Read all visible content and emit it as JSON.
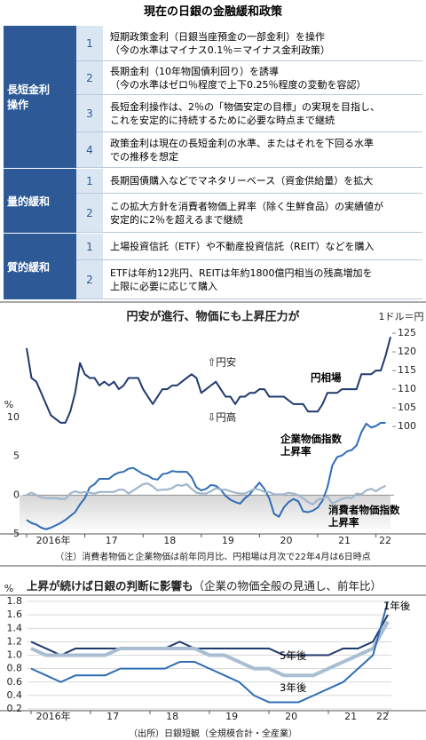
{
  "header": {
    "title": "現在の日銀の金融緩和政策"
  },
  "table": {
    "groups": [
      {
        "label_lines": [
          "長短金利",
          "操作"
        ],
        "rows": [
          {
            "no": "1",
            "lines": [
              "短期政策金利（日銀当座預金の一部金利）を操作",
              "（今の水準はマイナス0.1％＝マイナス金利政策）"
            ]
          },
          {
            "no": "2",
            "lines": [
              "長期金利（10年物国債利回り）を誘導",
              "（今の水準はゼロ％程度で上下0.25％程度の変動を容認）"
            ]
          },
          {
            "no": "3",
            "lines": [
              "長短金利操作は、2％の「物価安定の目標」の実現を目指し、",
              "これを安定的に持続するために必要な時点まで継続"
            ]
          },
          {
            "no": "4",
            "lines": [
              "政策金利は現在の長短金利の水準、またはそれを下回る水準",
              "での推移を想定"
            ]
          }
        ]
      },
      {
        "label_lines": [
          "量的緩和"
        ],
        "rows": [
          {
            "no": "1",
            "lines": [
              "長期国債購入などでマネタリーベース（資金供給量）を拡大"
            ]
          },
          {
            "no": "2",
            "lines": [
              "この拡大方針を消費者物価上昇率（除く生鮮食品）の実績値が",
              "安定的に2％を超えるまで継続"
            ]
          }
        ]
      },
      {
        "label_lines": [
          "質的緩和"
        ],
        "rows": [
          {
            "no": "1",
            "lines": [
              "上場投資信託（ETF）や不動産投資信託（REIT）などを購入"
            ]
          },
          {
            "no": "2",
            "lines": [
              "ETFは年約12兆円、REITは年約1800億円相当の残高増加を",
              "上限に必要に応じて購入"
            ]
          }
        ]
      }
    ]
  },
  "chart_data": [
    {
      "type": "line",
      "title": "円安が進行、物価にも上昇圧力が",
      "categories": [
        "2016年",
        null,
        null,
        null,
        null,
        null,
        null,
        null,
        null,
        null,
        null,
        null,
        "17",
        null,
        null,
        null,
        null,
        null,
        null,
        null,
        null,
        null,
        null,
        null,
        "18",
        null,
        null,
        null,
        null,
        null,
        null,
        null,
        null,
        null,
        null,
        null,
        "19",
        null,
        null,
        null,
        null,
        null,
        null,
        null,
        null,
        null,
        null,
        null,
        "20",
        null,
        null,
        null,
        null,
        null,
        null,
        null,
        null,
        null,
        null,
        null,
        "21",
        null,
        null,
        null,
        null,
        null,
        null,
        null,
        null,
        null,
        null,
        null,
        "22",
        null,
        null,
        null
      ],
      "series": [
        {
          "name": "円相場",
          "color": "#1f3a6e",
          "axis": "y2",
          "values": [
            121,
            113,
            112,
            109,
            106,
            103,
            102,
            101,
            101,
            104,
            109,
            117,
            114,
            113,
            113,
            111,
            112,
            111,
            112,
            110,
            111,
            113,
            113,
            113,
            110,
            108,
            106,
            108,
            110,
            110,
            111,
            111,
            112,
            113,
            114,
            113,
            109,
            110,
            111,
            112,
            110,
            108,
            108,
            106,
            108,
            108,
            109,
            109,
            110,
            110,
            108,
            108,
            108,
            108,
            107,
            106,
            106,
            106,
            104,
            104,
            104,
            106,
            109,
            109,
            109,
            110,
            110,
            110,
            110,
            114,
            114,
            114,
            115,
            115,
            119,
            124
          ]
        },
        {
          "name": "企業物価指数上昇率",
          "color": "#2f6db5",
          "values": [
            -3.2,
            -3.6,
            -3.8,
            -4.2,
            -4.4,
            -4.2,
            -3.9,
            -3.6,
            -3.2,
            -2.7,
            -2.2,
            -1.2,
            -0.4,
            1.0,
            1.4,
            2.1,
            2.1,
            2.1,
            2.6,
            2.9,
            3.0,
            3.4,
            3.5,
            3.1,
            2.7,
            2.5,
            2.1,
            2.0,
            2.7,
            2.8,
            3.1,
            3.0,
            3.0,
            3.0,
            2.3,
            1.0,
            0.6,
            0.8,
            1.3,
            1.2,
            0.7,
            -0.1,
            -0.6,
            -0.9,
            -1.1,
            -0.4,
            0.1,
            0.9,
            1.6,
            0.8,
            -0.4,
            -2.4,
            -2.8,
            -1.6,
            -0.9,
            -0.5,
            -0.8,
            -2.1,
            -2.2,
            -2.0,
            -1.6,
            -0.7,
            1.0,
            3.8,
            4.9,
            5.1,
            5.6,
            5.8,
            6.4,
            8.1,
            9.2,
            8.7,
            8.9,
            9.3,
            9.3,
            null
          ]
        },
        {
          "name": "消費者物価指数上昇率",
          "color": "#9fb6cc",
          "values": [
            0,
            0.3,
            0,
            -0.3,
            -0.4,
            -0.4,
            -0.4,
            -0.5,
            -0.5,
            0.2,
            0.5,
            0.3,
            0.4,
            0.3,
            0.2,
            0.4,
            0.4,
            0.4,
            0.4,
            0.7,
            0.7,
            0.2,
            0.6,
            1.0,
            1.4,
            1.5,
            1.1,
            0.6,
            0.7,
            0.7,
            0.9,
            1.3,
            1.2,
            1.4,
            0.8,
            0.3,
            0.2,
            0.2,
            0.5,
            0.9,
            0.7,
            0.7,
            0.5,
            0.3,
            0.2,
            0.2,
            0.5,
            0.8,
            0.7,
            0.4,
            0.4,
            0.1,
            0.1,
            0.1,
            0.3,
            0.2,
            0,
            -0.4,
            -0.9,
            -1.2,
            -0.6,
            -0.4,
            -0.2,
            -1.1,
            -0.8,
            -0.5,
            -0.3,
            -0.4,
            0.2,
            0.1,
            0.6,
            0.8,
            0.5,
            0.9,
            1.2,
            null
          ]
        }
      ],
      "ylim": [
        -5,
        22
      ],
      "yticks": [
        -5,
        0,
        5,
        10
      ],
      "y_label": "%",
      "y2lim": [
        71.2,
        127.4
      ],
      "y2ticks": [
        100,
        105,
        110,
        115,
        120,
        125
      ],
      "y2_label": "1ドル＝円",
      "annotations": [
        "⇧円安",
        "⇩円高"
      ],
      "note": "（注）消費者物価と企業物価は前年同月比、円相場は月次で22年4月は6日時点"
    },
    {
      "type": "line",
      "title": "上昇が続けば日銀の判断に影響も",
      "subtitle": "（企業の物価全般の見通し、前年比）",
      "categories": [
        "2016年",
        null,
        null,
        null,
        "17",
        null,
        null,
        null,
        "18",
        null,
        null,
        null,
        "19",
        null,
        null,
        null,
        "20",
        null,
        null,
        null,
        "21",
        null,
        null,
        null,
        "22"
      ],
      "series": [
        {
          "name": "5年後",
          "color": "#1f3a6e",
          "values": [
            1.2,
            1.1,
            1.0,
            1.1,
            1.1,
            1.1,
            1.1,
            1.1,
            1.1,
            1.1,
            1.2,
            1.1,
            1.1,
            1.1,
            1.1,
            1.1,
            1.1,
            1.0,
            1.0,
            1.0,
            1.0,
            1.1,
            1.1,
            1.2,
            1.6
          ]
        },
        {
          "name": "3年後",
          "color": "#a9bed3",
          "values": [
            1.1,
            1.0,
            1.0,
            1.0,
            1.0,
            1.0,
            1.1,
            1.1,
            1.1,
            1.1,
            1.1,
            1.1,
            1.0,
            1.0,
            0.9,
            0.8,
            0.8,
            0.7,
            0.7,
            0.7,
            0.8,
            0.9,
            1.0,
            1.1,
            1.5
          ]
        },
        {
          "name": "1年後",
          "color": "#2f6db5",
          "values": [
            0.8,
            0.7,
            0.6,
            0.7,
            0.7,
            0.7,
            0.8,
            0.8,
            0.8,
            0.8,
            0.9,
            0.9,
            0.8,
            0.7,
            0.6,
            0.4,
            0.3,
            0.3,
            0.3,
            0.4,
            0.5,
            0.6,
            0.8,
            1.0,
            1.8
          ]
        }
      ],
      "ylim": [
        0.2,
        1.8
      ],
      "yticks": [
        0.2,
        0.4,
        0.6,
        0.8,
        {
          "value": 1,
          "label": "1.0"
        },
        1.2,
        1.4,
        1.6,
        1.8
      ],
      "y_label": "%",
      "grid": true,
      "note": "（出所）日銀短観（全規模合計・全産業）"
    }
  ]
}
